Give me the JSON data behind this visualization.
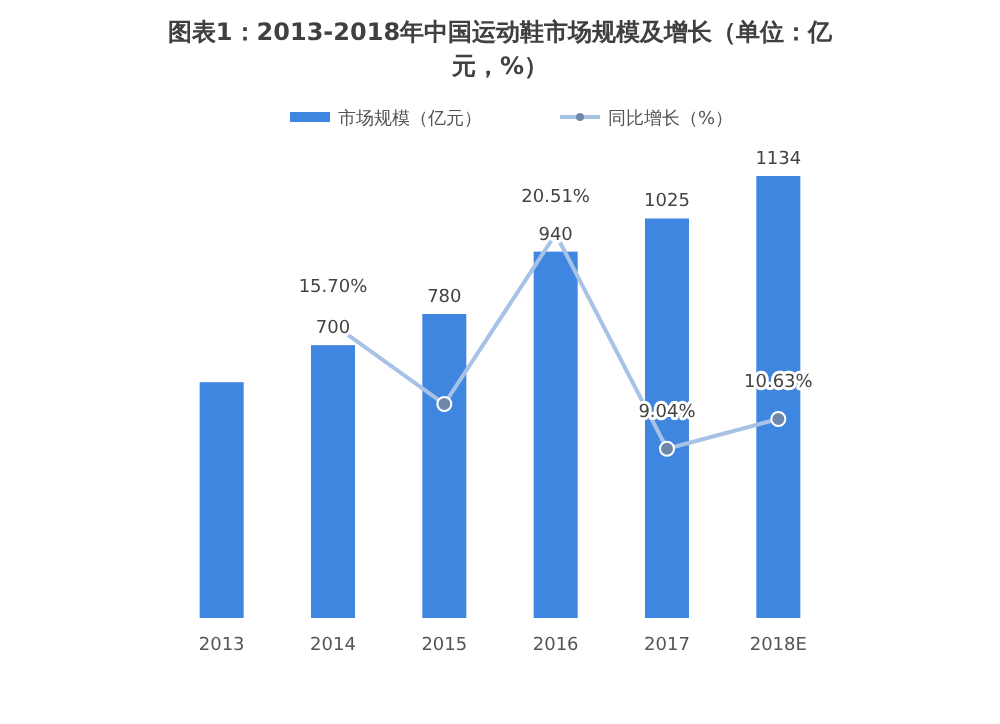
{
  "chart_data": {
    "type": "bar",
    "title": "图表1：2013-2018年中国运动鞋市场规模及增长（单位：亿元，%）",
    "categories": [
      "2013",
      "2014",
      "2015",
      "2016",
      "2017",
      "2018E"
    ],
    "legend": "top",
    "tick_labels": "x",
    "series": [
      {
        "name": "市场规模（亿元）",
        "color": "#3f86e0",
        "values": [
          605,
          700,
          780,
          940,
          1025,
          1134
        ],
        "value_labels": [
          null,
          "700",
          "780",
          "940",
          "1025",
          "1134"
        ]
      },
      {
        "name": "同比增长（%）",
        "type": "line",
        "axis": "y2",
        "color": "#a8c2e6",
        "marker": "circle",
        "values": [
          null,
          15.7,
          11.43,
          20.51,
          9.04,
          10.63
        ],
        "value_labels": [
          null,
          "15.70%",
          null,
          "20.51%",
          "9.04%",
          "10.63%"
        ]
      }
    ]
  }
}
